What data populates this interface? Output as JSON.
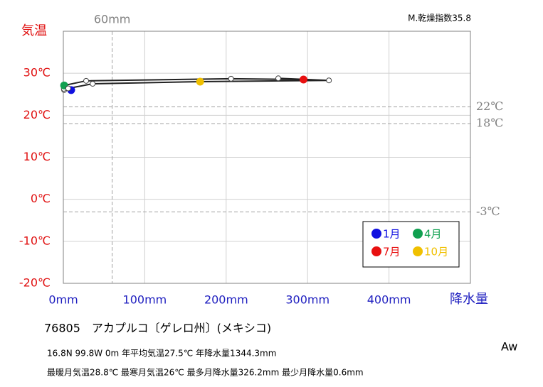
{
  "chart_data": {
    "type": "climograph",
    "title": "76805　アカプルコ〔ゲレロ州〕(メキシコ)",
    "info_lines": [
      "16.8N  99.8W  0m   年平均気温27.5℃  年降水量1344.3mm",
      "最暖月気温28.8℃  最寒月気温26℃  最多月降水量326.2mm  最少月降水量0.6mm"
    ],
    "climate_class": "Aw",
    "dryness_index": "M.乾燥指数35.8",
    "y_label": "気温",
    "x_label": "降水量",
    "xlim": [
      0,
      500
    ],
    "ylim": [
      -20,
      40
    ],
    "xticks": [
      {
        "value": 0,
        "label": "0mm"
      },
      {
        "value": 100,
        "label": "100mm"
      },
      {
        "value": 200,
        "label": "200mm"
      },
      {
        "value": 300,
        "label": "300mm"
      },
      {
        "value": 400,
        "label": "400mm"
      }
    ],
    "yticks": [
      {
        "value": -20,
        "label": "-20℃"
      },
      {
        "value": -10,
        "label": "-10℃"
      },
      {
        "value": 0,
        "label": "0℃"
      },
      {
        "value": 10,
        "label": "10℃"
      },
      {
        "value": 20,
        "label": "20℃"
      },
      {
        "value": 30,
        "label": "30℃"
      }
    ],
    "grid": true,
    "reference_lines": [
      {
        "axis": "x",
        "value": 60,
        "label": "60mm"
      },
      {
        "axis": "y",
        "value": 22,
        "label": "22℃"
      },
      {
        "axis": "y",
        "value": 18,
        "label": "18℃"
      },
      {
        "axis": "y",
        "value": -3,
        "label": "-3℃"
      }
    ],
    "series": [
      {
        "x": [
          9.6,
          1.0,
          0.6,
          1.0,
          28,
          206,
          295,
          264,
          326.2,
          168,
          36,
          6
        ],
        "values": [
          26.0,
          26.0,
          26.3,
          27.1,
          28.2,
          28.7,
          28.5,
          28.8,
          28.3,
          28.0,
          27.5,
          26.4
        ],
        "line_color": "#222222",
        "point_colors": [
          "#1010e0",
          "#ffffff",
          "#ffffff",
          "#10a050",
          "#ffffff",
          "#ffffff",
          "#e81010",
          "#ffffff",
          "#ffffff",
          "#f0c000",
          "#ffffff",
          "#ffffff"
        ]
      }
    ],
    "legend": [
      {
        "name": "1月",
        "color": "#1010e0"
      },
      {
        "name": "4月",
        "color": "#10a050"
      },
      {
        "name": "7月",
        "color": "#e81010"
      },
      {
        "name": "10月",
        "color": "#f0c000"
      }
    ]
  }
}
